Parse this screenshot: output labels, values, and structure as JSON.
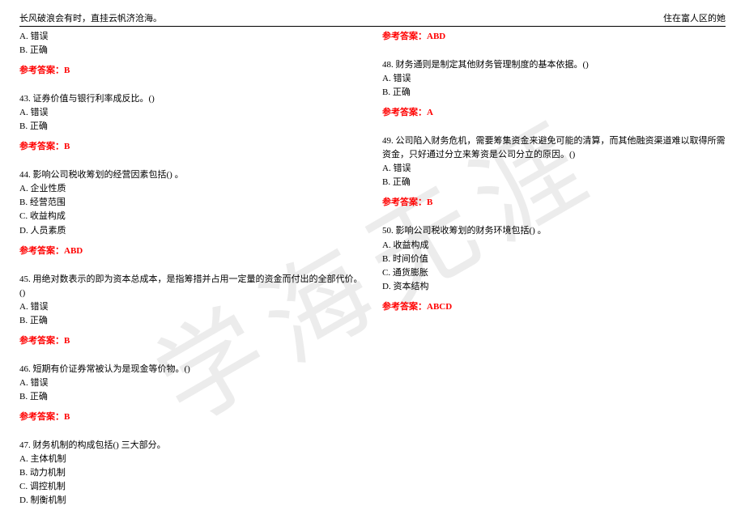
{
  "header": {
    "left": "长风破浪会有时，直挂云帆济沧海。",
    "right": "住在富人区的她"
  },
  "watermark": "学海无涯",
  "answer_prefix": "参考答案：",
  "left_col": {
    "q42_continuation": {
      "options": [
        "A. 错误",
        "B. 正确"
      ],
      "answer": "B"
    },
    "q43": {
      "text": "43. 证券价值与银行利率成反比。()",
      "options": [
        "A. 错误",
        "B. 正确"
      ],
      "answer": "B"
    },
    "q44": {
      "text": "44. 影响公司税收筹划的经营因素包括() 。",
      "options": [
        "A. 企业性质",
        "B. 经营范围",
        "C. 收益构成",
        "D. 人员素质"
      ],
      "answer": "ABD"
    },
    "q45": {
      "text": "45. 用绝对数表示的即为资本总成本，是指筹措并占用一定量的资金而付出的全部代价。()",
      "options": [
        "A. 错误",
        "B. 正确"
      ],
      "answer": "B"
    },
    "q46": {
      "text": "46. 短期有价证券常被认为是现金等价物。()",
      "options": [
        "A. 错误",
        "B. 正确"
      ],
      "answer": "B"
    },
    "q47": {
      "text": "47. 财务机制的构成包括() 三大部分。",
      "options": [
        "A. 主体机制",
        "B. 动力机制",
        "C. 调控机制",
        "D. 制衡机制"
      ]
    }
  },
  "right_col": {
    "q47_answer": "ABD",
    "q48": {
      "text": "48. 财务通则是制定其他财务管理制度的基本依据。()",
      "options": [
        "A. 错误",
        "B. 正确"
      ],
      "answer": "A"
    },
    "q49": {
      "text": "49. 公司陷入财务危机，需要筹集资金来避免可能的清算，而其他融资渠道难以取得所需资金，只好通过分立来筹资是公司分立的原因。()",
      "options": [
        "A. 错误",
        "B. 正确"
      ],
      "answer": "B"
    },
    "q50": {
      "text": "50. 影响公司税收筹划的财务环境包括() 。",
      "options": [
        "A. 收益构成",
        "B. 时间价值",
        "C. 通货膨胀",
        "D. 资本结构"
      ],
      "answer": "ABCD"
    }
  }
}
